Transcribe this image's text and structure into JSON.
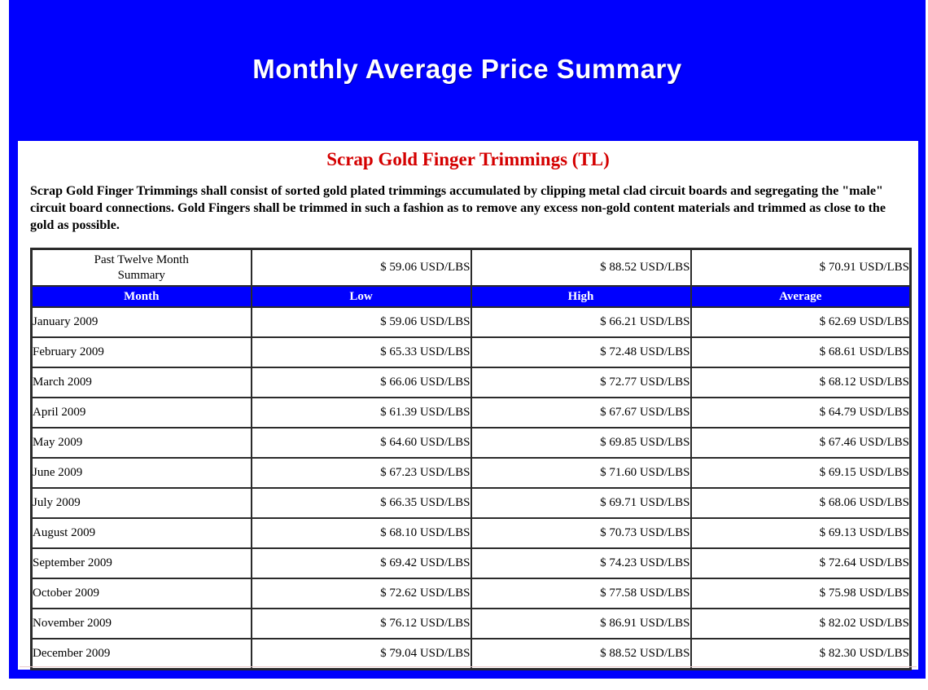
{
  "page": {
    "title": "Monthly Average Price Summary"
  },
  "content": {
    "heading": "Scrap Gold Finger Trimmings (TL)",
    "description": "Scrap Gold Finger Trimmings shall consist of sorted gold plated trimmings accumulated by clipping metal clad circuit boards and segregating the \"male\" circuit board connections. Gold Fingers shall be trimmed in such a fashion as to remove any excess non-gold content materials and trimmed as close to the gold as possible."
  },
  "colors": {
    "frame_blue": "#0000fe",
    "header_row_blue": "#0000fe",
    "heading_red": "#d40000",
    "header_text_white": "#ffffff",
    "table_border": "#2b2b2b"
  },
  "table": {
    "columns": [
      "Month",
      "Low",
      "High",
      "Average"
    ],
    "summary": {
      "label": "Past Twelve Month Summary",
      "low": "$ 59.06 USD/LBS",
      "high": "$ 88.52 USD/LBS",
      "average": "$ 70.91 USD/LBS"
    },
    "rows": [
      {
        "month": "January 2009",
        "low": "$ 59.06 USD/LBS",
        "high": "$ 66.21 USD/LBS",
        "average": "$ 62.69 USD/LBS"
      },
      {
        "month": "February 2009",
        "low": "$ 65.33 USD/LBS",
        "high": "$ 72.48 USD/LBS",
        "average": "$ 68.61 USD/LBS"
      },
      {
        "month": "March 2009",
        "low": "$ 66.06 USD/LBS",
        "high": "$ 72.77 USD/LBS",
        "average": "$ 68.12 USD/LBS"
      },
      {
        "month": "April 2009",
        "low": "$ 61.39 USD/LBS",
        "high": "$ 67.67 USD/LBS",
        "average": "$ 64.79 USD/LBS"
      },
      {
        "month": "May 2009",
        "low": "$ 64.60 USD/LBS",
        "high": "$ 69.85 USD/LBS",
        "average": "$ 67.46 USD/LBS"
      },
      {
        "month": "June 2009",
        "low": "$ 67.23 USD/LBS",
        "high": "$ 71.60 USD/LBS",
        "average": "$ 69.15 USD/LBS"
      },
      {
        "month": "July 2009",
        "low": "$ 66.35 USD/LBS",
        "high": "$ 69.71 USD/LBS",
        "average": "$ 68.06 USD/LBS"
      },
      {
        "month": "August 2009",
        "low": "$ 68.10 USD/LBS",
        "high": "$ 70.73 USD/LBS",
        "average": "$ 69.13 USD/LBS"
      },
      {
        "month": "September 2009",
        "low": "$ 69.42 USD/LBS",
        "high": "$ 74.23 USD/LBS",
        "average": "$ 72.64 USD/LBS"
      },
      {
        "month": "October 2009",
        "low": "$ 72.62 USD/LBS",
        "high": "$ 77.58 USD/LBS",
        "average": "$ 75.98 USD/LBS"
      },
      {
        "month": "November 2009",
        "low": "$ 76.12 USD/LBS",
        "high": "$ 86.91 USD/LBS",
        "average": "$ 82.02 USD/LBS"
      },
      {
        "month": "December 2009",
        "low": "$ 79.04 USD/LBS",
        "high": "$ 88.52 USD/LBS",
        "average": "$ 82.30 USD/LBS"
      }
    ]
  },
  "chart_data": {
    "type": "table",
    "title": "Scrap Gold Finger Trimmings (TL) — Monthly Average Price Summary",
    "unit": "USD/LBS",
    "categories": [
      "January 2009",
      "February 2009",
      "March 2009",
      "April 2009",
      "May 2009",
      "June 2009",
      "July 2009",
      "August 2009",
      "September 2009",
      "October 2009",
      "November 2009",
      "December 2009"
    ],
    "series": [
      {
        "name": "Low",
        "values": [
          59.06,
          65.33,
          66.06,
          61.39,
          64.6,
          67.23,
          66.35,
          68.1,
          69.42,
          72.62,
          76.12,
          79.04
        ]
      },
      {
        "name": "High",
        "values": [
          66.21,
          72.48,
          72.77,
          67.67,
          69.85,
          71.6,
          69.71,
          70.73,
          74.23,
          77.58,
          86.91,
          88.52
        ]
      },
      {
        "name": "Average",
        "values": [
          62.69,
          68.61,
          68.12,
          64.79,
          67.46,
          69.15,
          68.06,
          69.13,
          72.64,
          75.98,
          82.02,
          82.3
        ]
      }
    ],
    "past_twelve_month_summary": {
      "low": 59.06,
      "high": 88.52,
      "average": 70.91
    }
  }
}
